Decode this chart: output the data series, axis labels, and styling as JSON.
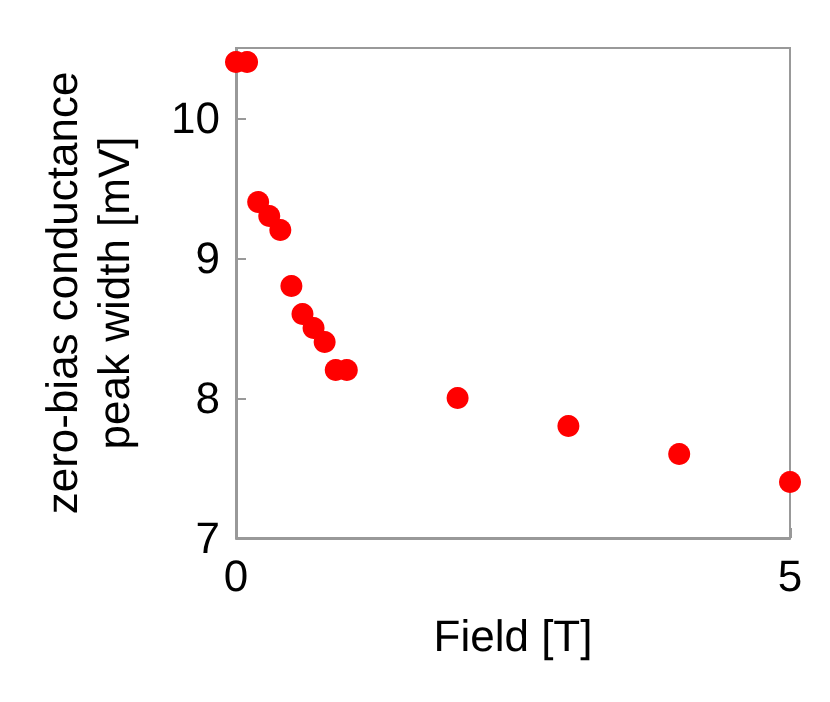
{
  "chart_data": {
    "type": "scatter",
    "xlabel": "Field [T]",
    "ylabel": "zero-bias conductance\npeak width [mV]",
    "x": [
      0,
      0.1,
      0.2,
      0.3,
      0.4,
      0.5,
      0.6,
      0.7,
      0.8,
      0.9,
      1.0,
      2,
      3,
      4,
      5
    ],
    "series": [
      {
        "color": "#ff0000",
        "values": [
          10.4,
          10.4,
          9.4,
          9.3,
          9.2,
          8.8,
          8.6,
          8.5,
          8.4,
          8.2,
          8.2,
          8.0,
          7.8,
          7.6,
          7.4
        ]
      }
    ],
    "xlim": [
      0,
      5
    ],
    "xticks": [
      0,
      5
    ],
    "ylim": [
      7,
      10.5
    ],
    "yticks": [
      7,
      8,
      9,
      10
    ],
    "marker": "circle",
    "grid": false
  }
}
